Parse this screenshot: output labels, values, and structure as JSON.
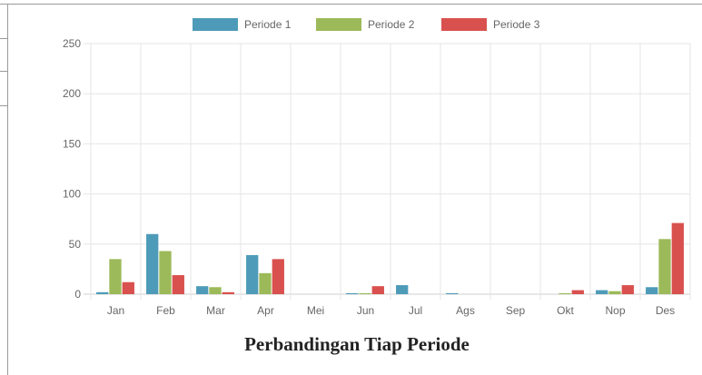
{
  "chart_data": {
    "type": "bar",
    "title": "Perbandingan Tiap Periode",
    "legend_position": "top",
    "grid": true,
    "ylim": [
      0,
      250
    ],
    "yticks": [
      0,
      50,
      100,
      150,
      200,
      250
    ],
    "categories": [
      "Jan",
      "Feb",
      "Mar",
      "Apr",
      "Mei",
      "Jun",
      "Jul",
      "Ags",
      "Sep",
      "Okt",
      "Nop",
      "Des"
    ],
    "series": [
      {
        "name": "Periode 1",
        "color": "#4e9bb9",
        "values": [
          2,
          60,
          8,
          39,
          0,
          1,
          9,
          1,
          0,
          0,
          4,
          7
        ]
      },
      {
        "name": "Periode 2",
        "color": "#9cba59",
        "values": [
          35,
          43,
          7,
          21,
          0,
          1,
          0,
          0,
          0,
          1,
          3,
          55
        ]
      },
      {
        "name": "Periode 3",
        "color": "#d9514e",
        "values": [
          12,
          19,
          2,
          35,
          0,
          8,
          0,
          0,
          0,
          4,
          9,
          71
        ]
      }
    ]
  }
}
